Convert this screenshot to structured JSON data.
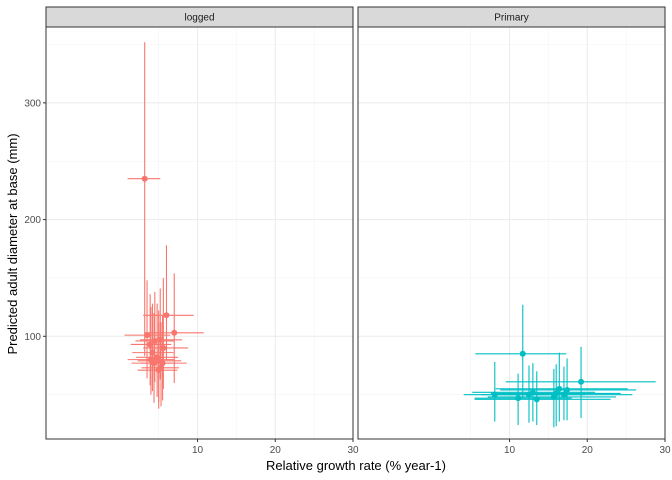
{
  "chart_data": {
    "type": "scatter",
    "xlabel": "Relative growth rate (% year-1)",
    "ylabel": "Predicted adult diameter at base (mm)",
    "xlim": [
      -9.5,
      30
    ],
    "ylim": [
      12,
      365
    ],
    "x_ticks": [
      10,
      20,
      30
    ],
    "y_ticks": [
      100,
      200,
      300
    ],
    "grid": true,
    "legend": "none",
    "panels": [
      {
        "label": "logged",
        "color": "#F8766D",
        "points": [
          {
            "x": 3.2,
            "y": 235,
            "xmin": 1.0,
            "xmax": 5.2,
            "ymin": 83,
            "ymax": 352
          },
          {
            "x": 6.0,
            "y": 118,
            "xmin": 3.0,
            "xmax": 9.5,
            "ymin": 80,
            "ymax": 178
          },
          {
            "x": 7.0,
            "y": 103,
            "xmin": 3.2,
            "xmax": 10.8,
            "ymin": 60,
            "ymax": 154
          },
          {
            "x": 3.5,
            "y": 101,
            "xmin": 0.6,
            "xmax": 6.5,
            "ymin": 64,
            "ymax": 148
          },
          {
            "x": 4.5,
            "y": 96,
            "xmin": 2.0,
            "xmax": 7.0,
            "ymin": 61,
            "ymax": 138
          },
          {
            "x": 5.2,
            "y": 97,
            "xmin": 2.6,
            "xmax": 8.0,
            "ymin": 63,
            "ymax": 141
          },
          {
            "x": 3.9,
            "y": 93,
            "xmin": 1.4,
            "xmax": 6.6,
            "ymin": 58,
            "ymax": 136
          },
          {
            "x": 5.6,
            "y": 90,
            "xmin": 3.0,
            "xmax": 8.8,
            "ymin": 55,
            "ymax": 150
          },
          {
            "x": 4.2,
            "y": 86,
            "xmin": 1.6,
            "xmax": 6.9,
            "ymin": 53,
            "ymax": 128
          },
          {
            "x": 4.8,
            "y": 82,
            "xmin": 2.1,
            "xmax": 7.5,
            "ymin": 48,
            "ymax": 128
          },
          {
            "x": 4.0,
            "y": 80,
            "xmin": 1.0,
            "xmax": 7.0,
            "ymin": 50,
            "ymax": 125
          },
          {
            "x": 5.0,
            "y": 79,
            "xmin": 2.3,
            "xmax": 7.9,
            "ymin": 44,
            "ymax": 122
          },
          {
            "x": 4.4,
            "y": 77,
            "xmin": 1.5,
            "xmax": 7.2,
            "ymin": 43,
            "ymax": 120
          },
          {
            "x": 5.5,
            "y": 77,
            "xmin": 2.7,
            "xmax": 8.6,
            "ymin": 45,
            "ymax": 118
          },
          {
            "x": 5.3,
            "y": 73,
            "xmin": 2.8,
            "xmax": 7.6,
            "ymin": 40,
            "ymax": 112
          },
          {
            "x": 5.0,
            "y": 71,
            "xmin": 2.3,
            "xmax": 7.4,
            "ymin": 38,
            "ymax": 112
          }
        ]
      },
      {
        "label": "Primary",
        "color": "#00BFC4",
        "points": [
          {
            "x": 11.7,
            "y": 85,
            "xmin": 5.6,
            "xmax": 17.3,
            "ymin": 47,
            "ymax": 127
          },
          {
            "x": 19.2,
            "y": 61,
            "xmin": 9.5,
            "xmax": 28.8,
            "ymin": 30,
            "ymax": 91
          },
          {
            "x": 16.4,
            "y": 55,
            "xmin": 8.2,
            "xmax": 25.2,
            "ymin": 27,
            "ymax": 86
          },
          {
            "x": 17.4,
            "y": 54,
            "xmin": 8.8,
            "xmax": 26.3,
            "ymin": 28,
            "ymax": 81
          },
          {
            "x": 13.0,
            "y": 52,
            "xmin": 5.2,
            "xmax": 21.0,
            "ymin": 27,
            "ymax": 77
          },
          {
            "x": 16.0,
            "y": 51,
            "xmin": 7.6,
            "xmax": 24.3,
            "ymin": 23,
            "ymax": 76
          },
          {
            "x": 8.1,
            "y": 50,
            "xmin": 4.1,
            "xmax": 15.0,
            "ymin": 27,
            "ymax": 78
          },
          {
            "x": 12.5,
            "y": 50,
            "xmin": 6.3,
            "xmax": 19.7,
            "ymin": 26,
            "ymax": 75
          },
          {
            "x": 17.0,
            "y": 50,
            "xmin": 8.5,
            "xmax": 25.8,
            "ymin": 28,
            "ymax": 74
          },
          {
            "x": 15.7,
            "y": 48,
            "xmin": 7.2,
            "xmax": 23.7,
            "ymin": 22,
            "ymax": 72
          },
          {
            "x": 11.1,
            "y": 47,
            "xmin": 5.5,
            "xmax": 18.0,
            "ymin": 24,
            "ymax": 68
          },
          {
            "x": 13.5,
            "y": 46,
            "xmin": 5.5,
            "xmax": 23.0,
            "ymin": 24,
            "ymax": 70
          }
        ]
      }
    ]
  }
}
